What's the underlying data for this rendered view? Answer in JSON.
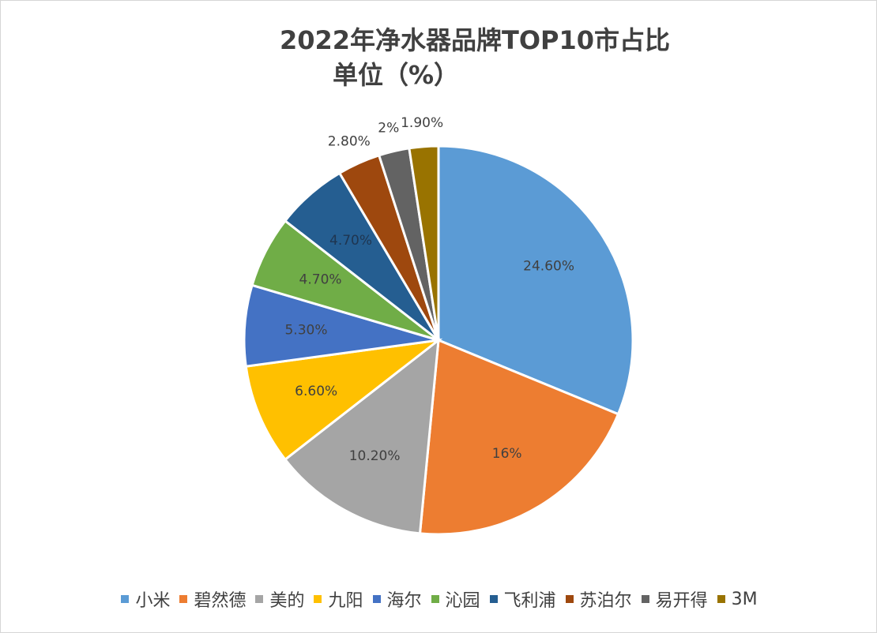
{
  "chart_data": {
    "type": "pie",
    "title_line_1": "2022年净水器品牌TOP10市占比",
    "title_line_2": "单位（%）",
    "categories": [
      "小米",
      "碧然德",
      "美的",
      "九阳",
      "海尔",
      "沁园",
      "飞利浦",
      "苏泊尔",
      "易开得",
      "3M"
    ],
    "values": [
      24.6,
      16,
      10.2,
      6.6,
      5.3,
      4.7,
      4.7,
      2.8,
      2,
      1.9
    ],
    "labels": [
      "24.60%",
      "16%",
      "10.20%",
      "6.60%",
      "5.30%",
      "4.70%",
      "4.70%",
      "2.80%",
      "2%",
      "1.90%"
    ],
    "colors": [
      "#5b9bd5",
      "#ed7d31",
      "#a5a5a5",
      "#ffc000",
      "#4472c4",
      "#70ad47",
      "#255e91",
      "#9e480e",
      "#636363",
      "#997300"
    ],
    "legend_position": "bottom"
  }
}
